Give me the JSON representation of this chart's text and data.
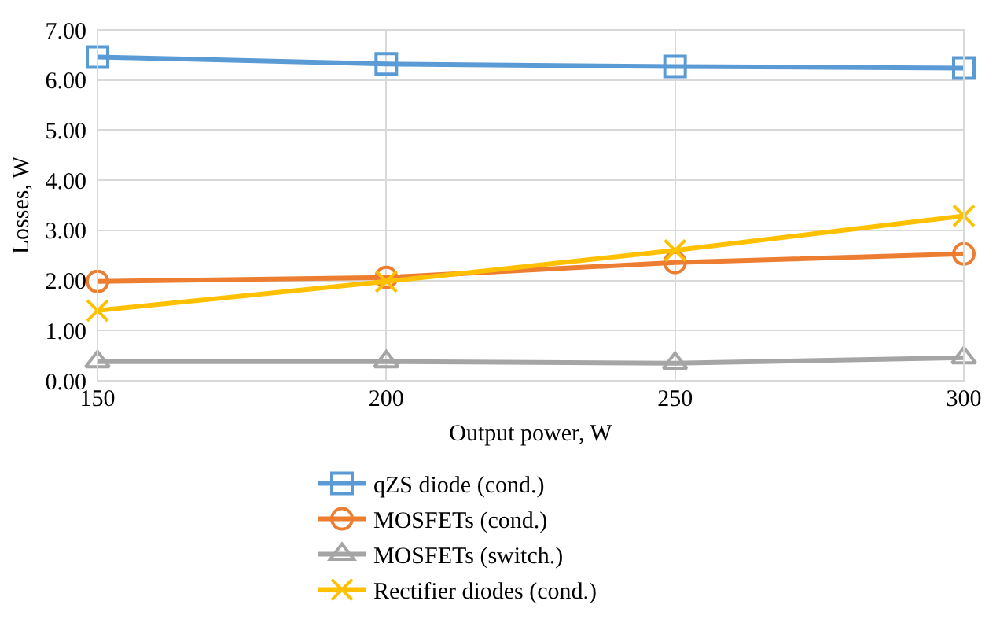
{
  "chart_data": {
    "type": "line",
    "xlabel": "Output power, W",
    "ylabel": "Losses, W",
    "x": [
      150,
      200,
      250,
      300
    ],
    "xlim": [
      150,
      300
    ],
    "xticks": [
      150,
      200,
      250,
      300
    ],
    "ylim": [
      0,
      7
    ],
    "yticks": [
      {
        "value": 0,
        "label": "0.00"
      },
      {
        "value": 1,
        "label": "1.00"
      },
      {
        "value": 2,
        "label": "2.00"
      },
      {
        "value": 3,
        "label": "3.00"
      },
      {
        "value": 4,
        "label": "4.00"
      },
      {
        "value": 5,
        "label": "5.00"
      },
      {
        "value": 6,
        "label": "6.00"
      },
      {
        "value": 7,
        "label": "7.00"
      }
    ],
    "grid": true,
    "legend": "bottom",
    "line_style": "solid",
    "series": [
      {
        "name": "qZS diode (cond.)",
        "color": "#5b9bd5",
        "marker": "square",
        "values": [
          6.46,
          6.32,
          6.27,
          6.24
        ]
      },
      {
        "name": "MOSFETs (cond.)",
        "color": "#ed7d31",
        "marker": "circle",
        "values": [
          1.98,
          2.06,
          2.36,
          2.53
        ]
      },
      {
        "name": "MOSFETs (switch.)",
        "color": "#a5a5a5",
        "marker": "triangle",
        "values": [
          0.38,
          0.38,
          0.35,
          0.46
        ]
      },
      {
        "name": "Rectifier diodes (cond.)",
        "color": "#ffc000",
        "marker": "cross",
        "values": [
          1.4,
          1.98,
          2.6,
          3.29
        ]
      }
    ]
  }
}
